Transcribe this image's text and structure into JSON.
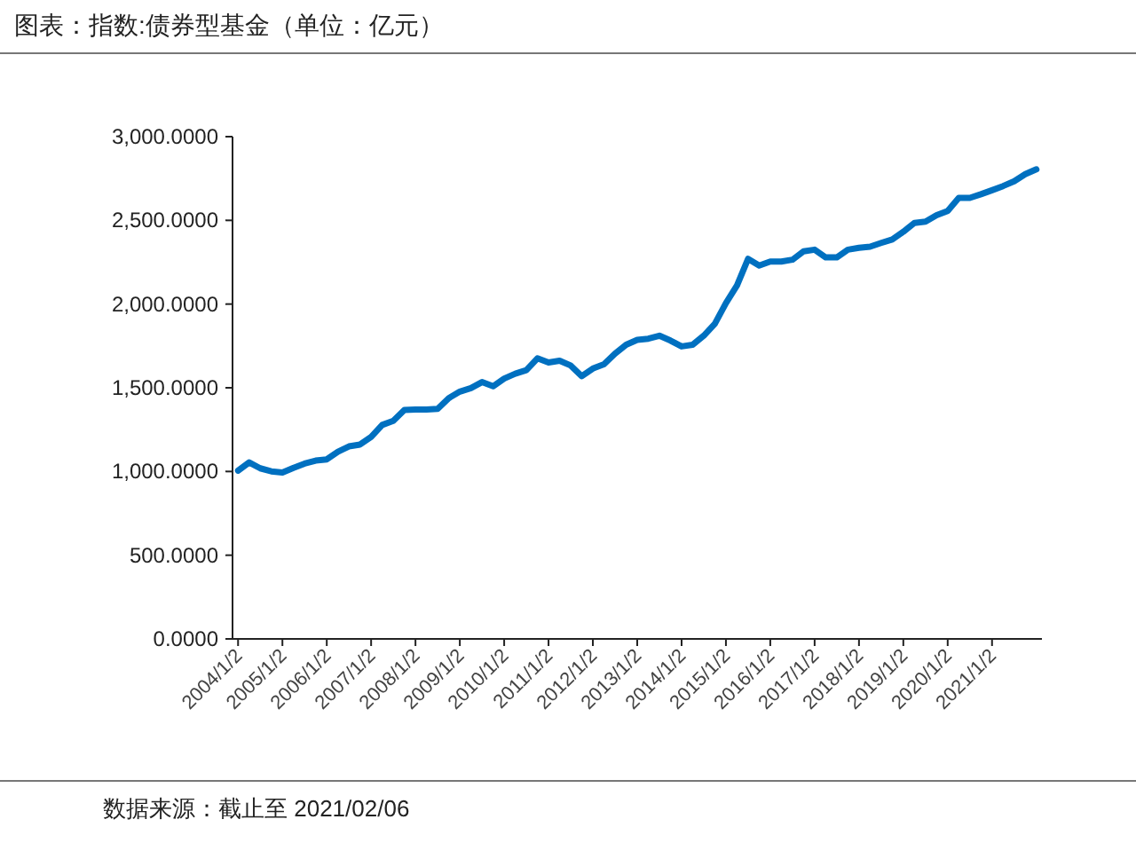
{
  "chart_data": {
    "type": "line",
    "title": "图表：指数:债券型基金（单位：亿元）",
    "annotations": [
      "数据来源：截止至 2021/02/06"
    ],
    "categories": [
      "2004/1/2",
      null,
      null,
      null,
      "2005/1/2",
      null,
      null,
      null,
      "2006/1/2",
      null,
      null,
      null,
      "2007/1/2",
      null,
      null,
      null,
      "2008/1/2",
      null,
      null,
      null,
      "2009/1/2",
      null,
      null,
      null,
      "2010/1/2",
      null,
      null,
      null,
      "2011/1/2",
      null,
      null,
      null,
      "2012/1/2",
      null,
      null,
      null,
      "2013/1/2",
      null,
      null,
      null,
      "2014/1/2",
      null,
      null,
      null,
      "2015/1/2",
      null,
      null,
      null,
      "2016/1/2",
      null,
      null,
      null,
      "2017/1/2",
      null,
      null,
      null,
      "2018/1/2",
      null,
      null,
      null,
      "2019/1/2",
      null,
      null,
      null,
      "2020/1/2",
      null,
      null,
      null,
      "2021/1/2",
      null,
      null,
      null,
      null
    ],
    "series": [
      {
        "color": "#0070c0",
        "values": [
          1005,
          1054,
          1019,
          1001,
          994,
          1022,
          1047,
          1065,
          1072,
          1118,
          1150,
          1161,
          1207,
          1278,
          1303,
          1367,
          1370,
          1370,
          1374,
          1438,
          1477,
          1498,
          1534,
          1509,
          1555,
          1584,
          1605,
          1676,
          1651,
          1662,
          1633,
          1569,
          1615,
          1640,
          1704,
          1757,
          1786,
          1793,
          1811,
          1782,
          1747,
          1757,
          1811,
          1882,
          2006,
          2112,
          2270,
          2230,
          2254,
          2254,
          2265,
          2315,
          2325,
          2279,
          2279,
          2325,
          2336,
          2343,
          2365,
          2386,
          2432,
          2485,
          2492,
          2531,
          2556,
          2634,
          2634,
          2656,
          2680,
          2705,
          2734,
          2776,
          2805
        ]
      }
    ],
    "ylim": [
      0,
      3000
    ],
    "yticks": [
      {
        "value": 0,
        "label": "0.0000"
      },
      {
        "value": 500,
        "label": "500.0000"
      },
      {
        "value": 1000,
        "label": "1,000.0000"
      },
      {
        "value": 1500,
        "label": "1,500.0000"
      },
      {
        "value": 2000,
        "label": "2,000.0000"
      },
      {
        "value": 2500,
        "label": "2,500.0000"
      },
      {
        "value": 3000,
        "label": "3,000.0000"
      }
    ],
    "marker": "none",
    "line_style": "solid"
  }
}
